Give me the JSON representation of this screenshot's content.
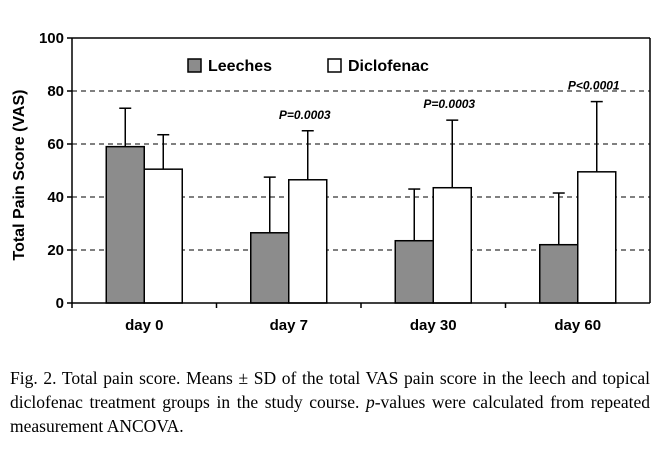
{
  "chart_data": {
    "type": "bar",
    "categories": [
      "day 0",
      "day 7",
      "day 30",
      "day 60"
    ],
    "series": [
      {
        "name": "Leeches",
        "values": [
          59,
          26.5,
          23.5,
          22
        ],
        "sd": [
          14.5,
          21,
          19.5,
          19.5
        ],
        "color": "#8c8c8c"
      },
      {
        "name": "Diclofenac",
        "values": [
          50.5,
          46.5,
          43.5,
          49.5
        ],
        "sd": [
          13,
          18.5,
          25.5,
          26.5
        ],
        "color": "#ffffff"
      }
    ],
    "ylabel": "Total Pain Score (VAS)",
    "xlabel": "",
    "ylim": [
      0,
      100
    ],
    "yticks": [
      0,
      20,
      40,
      60,
      80,
      100
    ],
    "grid": "horizontal dashed",
    "legend_position": "top",
    "annotations": [
      {
        "category": "day 7",
        "text": "P=0.0003"
      },
      {
        "category": "day 30",
        "text": "P=0.0003"
      },
      {
        "category": "day 60",
        "text": "P<0.0001"
      }
    ]
  },
  "caption": {
    "prefix": "Fig. 2. Total pain score. Means ± SD of the total VAS pain score in the leech and topical diclofenac treatment groups in the study course.",
    "p_italic": "p",
    "suffix": "-values were calculated from repeated measurement ANCOVA."
  }
}
